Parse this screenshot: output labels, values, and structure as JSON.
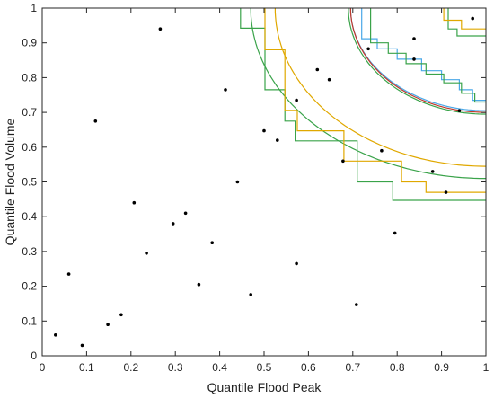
{
  "chart_data": {
    "type": "scatter",
    "title": "",
    "xlabel": "Quantile Flood Peak",
    "ylabel": "Quantile Flood Volume",
    "xlim": [
      0,
      1
    ],
    "ylim": [
      0,
      1
    ],
    "x_ticks": [
      "0",
      "0.1",
      "0.2",
      "0.3",
      "0.4",
      "0.5",
      "0.6",
      "0.7",
      "0.8",
      "0.9",
      "1"
    ],
    "y_ticks": [
      "0",
      "0.1",
      "0.2",
      "0.3",
      "0.4",
      "0.5",
      "0.6",
      "0.7",
      "0.8",
      "0.9",
      "1"
    ],
    "grid": false,
    "points": [
      {
        "x": 0.03,
        "y": 0.06
      },
      {
        "x": 0.06,
        "y": 0.235
      },
      {
        "x": 0.09,
        "y": 0.03
      },
      {
        "x": 0.12,
        "y": 0.675
      },
      {
        "x": 0.148,
        "y": 0.09
      },
      {
        "x": 0.178,
        "y": 0.118
      },
      {
        "x": 0.207,
        "y": 0.44
      },
      {
        "x": 0.235,
        "y": 0.295
      },
      {
        "x": 0.266,
        "y": 0.94
      },
      {
        "x": 0.295,
        "y": 0.38
      },
      {
        "x": 0.323,
        "y": 0.41
      },
      {
        "x": 0.353,
        "y": 0.205
      },
      {
        "x": 0.383,
        "y": 0.325
      },
      {
        "x": 0.413,
        "y": 0.765
      },
      {
        "x": 0.44,
        "y": 0.5
      },
      {
        "x": 0.47,
        "y": 0.176
      },
      {
        "x": 0.5,
        "y": 0.647
      },
      {
        "x": 0.53,
        "y": 0.62
      },
      {
        "x": 0.573,
        "y": 0.265
      },
      {
        "x": 0.573,
        "y": 0.735
      },
      {
        "x": 0.62,
        "y": 0.823
      },
      {
        "x": 0.647,
        "y": 0.794
      },
      {
        "x": 0.678,
        "y": 0.56
      },
      {
        "x": 0.708,
        "y": 0.147
      },
      {
        "x": 0.735,
        "y": 0.883
      },
      {
        "x": 0.765,
        "y": 0.59
      },
      {
        "x": 0.795,
        "y": 0.353
      },
      {
        "x": 0.838,
        "y": 0.912
      },
      {
        "x": 0.838,
        "y": 0.853
      },
      {
        "x": 0.88,
        "y": 0.53
      },
      {
        "x": 0.91,
        "y": 0.47
      },
      {
        "x": 0.94,
        "y": 0.705
      },
      {
        "x": 0.97,
        "y": 0.97
      }
    ],
    "step_series": [
      {
        "color": "#3aa34a",
        "points": [
          [
            0.447,
            1
          ],
          [
            0.447,
            0.942
          ],
          [
            0.502,
            0.942
          ],
          [
            0.502,
            0.765
          ],
          [
            0.547,
            0.765
          ],
          [
            0.547,
            0.675
          ],
          [
            0.57,
            0.675
          ],
          [
            0.57,
            0.618
          ],
          [
            0.71,
            0.618
          ],
          [
            0.71,
            0.5
          ],
          [
            0.79,
            0.5
          ],
          [
            0.79,
            0.447
          ],
          [
            1,
            0.447
          ]
        ]
      },
      {
        "color": "#e0a800",
        "points": [
          [
            0.502,
            1
          ],
          [
            0.502,
            0.88
          ],
          [
            0.547,
            0.88
          ],
          [
            0.547,
            0.706
          ],
          [
            0.575,
            0.706
          ],
          [
            0.575,
            0.647
          ],
          [
            0.68,
            0.647
          ],
          [
            0.68,
            0.56
          ],
          [
            0.81,
            0.56
          ],
          [
            0.81,
            0.5
          ],
          [
            0.865,
            0.5
          ],
          [
            0.865,
            0.47
          ],
          [
            1,
            0.47
          ]
        ]
      },
      {
        "color": "#3aa34a",
        "points": [
          [
            0.915,
            1
          ],
          [
            0.915,
            0.94
          ],
          [
            0.935,
            0.94
          ],
          [
            0.935,
            0.92
          ],
          [
            1,
            0.92
          ]
        ]
      },
      {
        "color": "#e0a800",
        "points": [
          [
            0.905,
            1
          ],
          [
            0.905,
            0.965
          ],
          [
            0.945,
            0.965
          ],
          [
            0.945,
            0.94
          ],
          [
            1,
            0.94
          ]
        ]
      },
      {
        "color": "#4aa8e8",
        "points": [
          [
            0.72,
            1
          ],
          [
            0.72,
            0.912
          ],
          [
            0.755,
            0.912
          ],
          [
            0.755,
            0.883
          ],
          [
            0.8,
            0.883
          ],
          [
            0.8,
            0.853
          ],
          [
            0.855,
            0.853
          ],
          [
            0.855,
            0.82
          ],
          [
            0.9,
            0.82
          ],
          [
            0.9,
            0.794
          ],
          [
            0.94,
            0.794
          ],
          [
            0.94,
            0.765
          ],
          [
            0.97,
            0.765
          ],
          [
            0.97,
            0.735
          ],
          [
            1,
            0.735
          ]
        ]
      },
      {
        "color": "#3aa34a",
        "points": [
          [
            0.74,
            1
          ],
          [
            0.74,
            0.9
          ],
          [
            0.78,
            0.9
          ],
          [
            0.78,
            0.87
          ],
          [
            0.82,
            0.87
          ],
          [
            0.82,
            0.84
          ],
          [
            0.865,
            0.84
          ],
          [
            0.865,
            0.81
          ],
          [
            0.905,
            0.81
          ],
          [
            0.905,
            0.785
          ],
          [
            0.945,
            0.785
          ],
          [
            0.945,
            0.755
          ],
          [
            0.975,
            0.755
          ],
          [
            0.975,
            0.73
          ],
          [
            1,
            0.73
          ]
        ]
      }
    ],
    "curve_series": [
      {
        "color": "#3aa34a",
        "cx": 1.0,
        "cy": 1.0,
        "rx": 0.53,
        "ry": 0.49
      },
      {
        "color": "#e0a800",
        "cx": 1.0,
        "cy": 1.0,
        "rx": 0.475,
        "ry": 0.455
      },
      {
        "color": "#4aa8e8",
        "cx": 1.0,
        "cy": 1.0,
        "rx": 0.305,
        "ry": 0.295
      },
      {
        "color": "#c0392b",
        "cx": 1.0,
        "cy": 1.0,
        "rx": 0.305,
        "ry": 0.3
      },
      {
        "color": "#3aa34a",
        "cx": 1.0,
        "cy": 1.0,
        "rx": 0.31,
        "ry": 0.305
      }
    ],
    "colors": {
      "axis": "#262626",
      "points": "#000000",
      "background": "#ffffff"
    }
  }
}
